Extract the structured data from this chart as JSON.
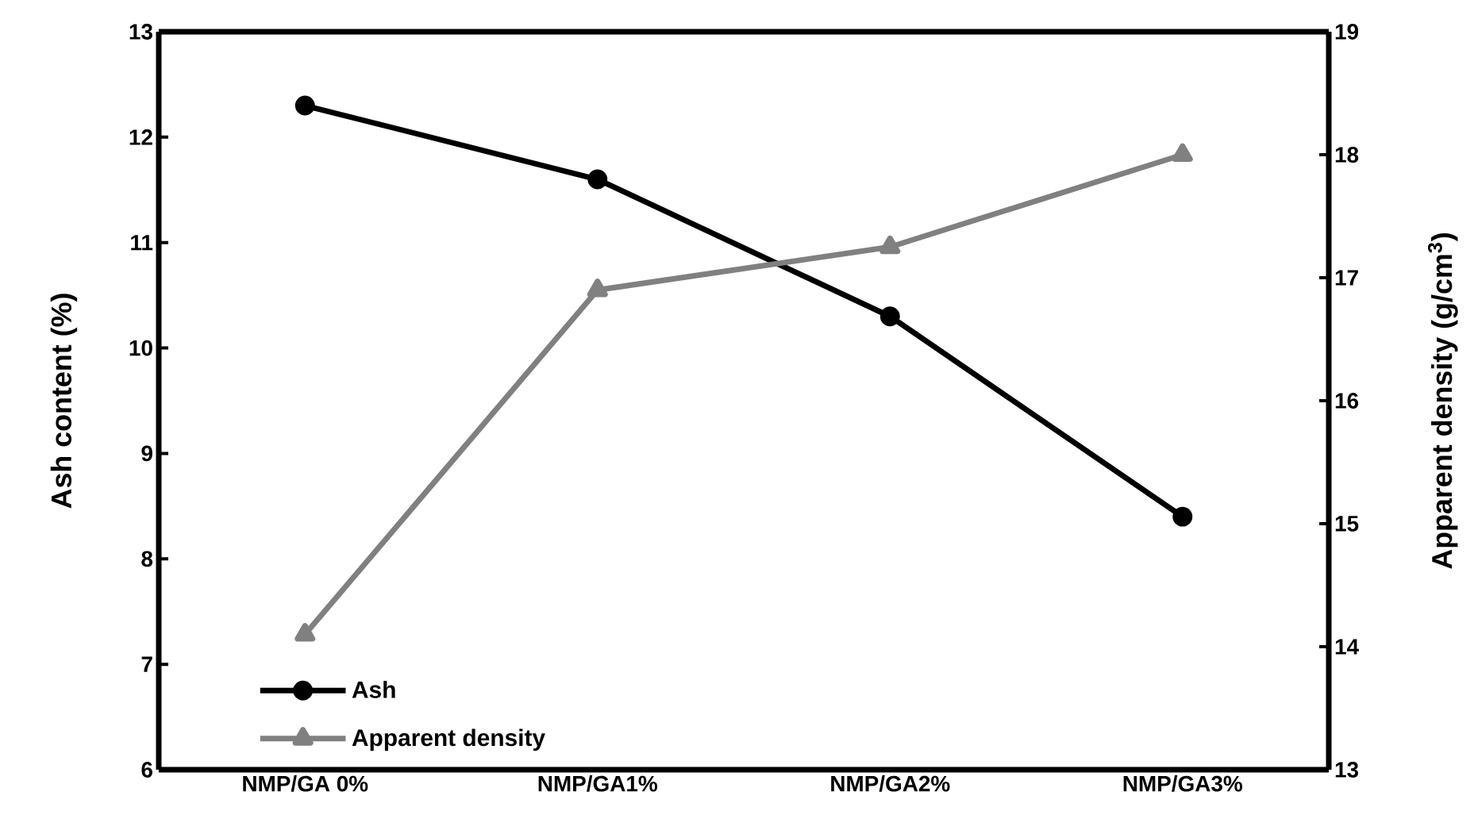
{
  "chart_data": {
    "type": "line",
    "categories": [
      "NMP/GA 0%",
      "NMP/GA1%",
      "NMP/GA2%",
      "NMP/GA3%"
    ],
    "ylabel": "Ash content (%)",
    "y2label": "Apparent density  (g/cm$^{3}$)",
    "ylim": [
      6,
      13
    ],
    "yticks": [
      6,
      7,
      8,
      9,
      10,
      11,
      12,
      13
    ],
    "y2lim": [
      13,
      19
    ],
    "y2ticks": [
      13,
      14,
      15,
      16,
      17,
      18,
      19
    ],
    "legend": "bottom left",
    "grid": false,
    "line_style": "solid",
    "series": [
      {
        "name": "Ash",
        "color": "#000000",
        "values": [
          12.3,
          11.6,
          10.3,
          8.4
        ],
        "marker": "circle"
      },
      {
        "name": "Apparent density",
        "color": "#808080",
        "values": [
          14.1,
          16.9,
          17.25,
          18.0
        ],
        "marker": "triangle",
        "axis": "y2"
      }
    ]
  }
}
